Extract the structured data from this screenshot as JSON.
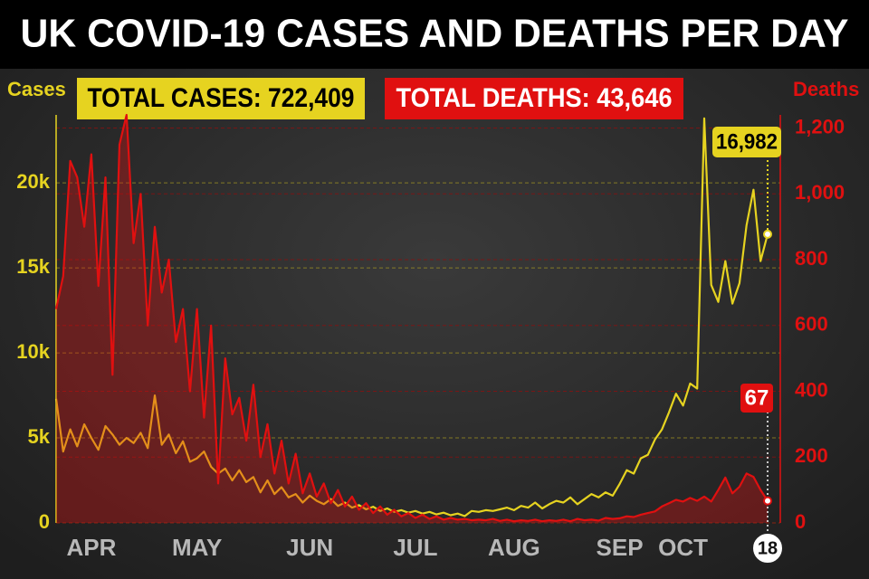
{
  "chart_data": {
    "type": "line",
    "title": "UK COVID-19 CASES AND DEATHS PER DAY",
    "totals": [
      "TOTAL CASES: 722,409",
      "TOTAL DEATHS: 43,646"
    ],
    "ylabel": "Cases",
    "y2label": "Deaths",
    "annotations": [
      "16,982",
      "67"
    ],
    "categories": [
      null,
      null,
      null,
      null,
      null,
      "APR",
      null,
      null,
      null,
      null,
      null,
      null,
      null,
      null,
      null,
      null,
      null,
      null,
      null,
      null,
      "MAY",
      null,
      null,
      null,
      null,
      null,
      null,
      null,
      null,
      null,
      null,
      null,
      null,
      null,
      null,
      null,
      "JUN",
      null,
      null,
      null,
      null,
      null,
      null,
      null,
      null,
      null,
      null,
      null,
      null,
      null,
      null,
      "JUL",
      null,
      null,
      null,
      null,
      null,
      null,
      null,
      null,
      null,
      null,
      null,
      null,
      null,
      "AUG",
      null,
      null,
      null,
      null,
      null,
      null,
      null,
      null,
      null,
      null,
      null,
      null,
      null,
      null,
      "SEP",
      null,
      null,
      null,
      null,
      null,
      null,
      null,
      null,
      "OCT",
      null,
      null,
      null,
      null,
      null,
      null,
      null,
      null,
      null,
      null,
      null,
      "18"
    ],
    "series": [
      {
        "color": "#e6d320",
        "values": [
          7300,
          4200,
          5500,
          4500,
          5800,
          5000,
          4300,
          5700,
          5200,
          4600,
          5000,
          4700,
          5300,
          4400,
          7500,
          4600,
          5200,
          4100,
          4800,
          3600,
          3800,
          4200,
          3300,
          2900,
          3200,
          2500,
          3100,
          2400,
          2700,
          1800,
          2500,
          1700,
          2100,
          1500,
          1700,
          1200,
          1600,
          1300,
          1100,
          1400,
          1000,
          1200,
          900,
          1050,
          800,
          950,
          700,
          850,
          650,
          750,
          600,
          700,
          550,
          650,
          500,
          600,
          450,
          550,
          400,
          700,
          650,
          750,
          700,
          800,
          900,
          750,
          1000,
          900,
          1200,
          850,
          1100,
          1300,
          1200,
          1500,
          1100,
          1400,
          1700,
          1500,
          1800,
          1600,
          2300,
          3100,
          2900,
          3800,
          4000,
          4900,
          5500,
          6500,
          7600,
          6900,
          8200,
          7900,
          23800,
          14000,
          13000,
          15400,
          12900,
          14100,
          17500,
          19600,
          15400,
          16982
        ]
      },
      {
        "color": "#e01010",
        "axis": "y2",
        "values": [
          650,
          750,
          1100,
          1050,
          900,
          1120,
          720,
          1050,
          450,
          1150,
          1240,
          850,
          1000,
          600,
          900,
          700,
          800,
          550,
          650,
          400,
          650,
          320,
          600,
          120,
          500,
          330,
          380,
          250,
          420,
          200,
          300,
          150,
          250,
          120,
          210,
          90,
          150,
          80,
          120,
          60,
          100,
          50,
          80,
          40,
          60,
          30,
          50,
          25,
          40,
          20,
          30,
          15,
          25,
          12,
          20,
          10,
          15,
          10,
          12,
          8,
          10,
          8,
          12,
          6,
          10,
          5,
          8,
          6,
          10,
          5,
          8,
          6,
          10,
          5,
          12,
          8,
          10,
          7,
          15,
          12,
          14,
          20,
          18,
          25,
          30,
          35,
          50,
          60,
          70,
          65,
          76,
          67,
          80,
          65,
          100,
          138,
          90,
          110,
          150,
          140,
          100,
          67
        ]
      }
    ],
    "ylim": [
      0,
      24000
    ],
    "yticks": [
      0,
      {
        "value": 5000,
        "label": "5k"
      },
      {
        "value": 10000,
        "label": "10k"
      },
      {
        "value": 15000,
        "label": "15k"
      },
      {
        "value": 20000,
        "label": "20k"
      }
    ],
    "y2lim": [
      0,
      1240
    ],
    "y2ticks": [
      0,
      200,
      400,
      600,
      800,
      {
        "value": 1000,
        "label": "1,000"
      },
      {
        "value": 1200,
        "label": "1,200"
      }
    ],
    "grid": true
  }
}
